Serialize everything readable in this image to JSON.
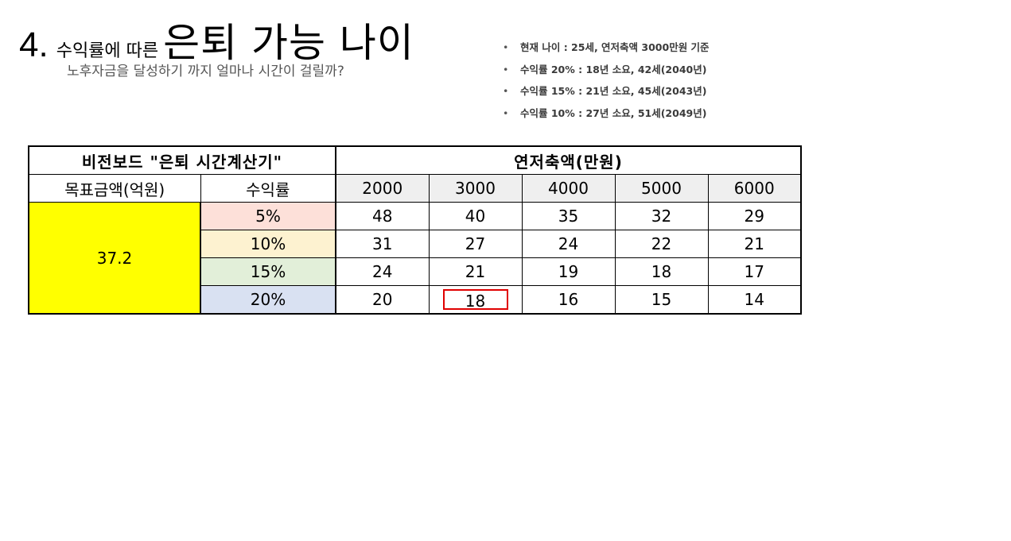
{
  "heading": {
    "number": "4.",
    "prefix": "수익률에 따른",
    "main": "은퇴 가능 나이",
    "subtitle": "노후자금을 달성하기 까지 얼마나 시간이 걸릴까?"
  },
  "bullets": [
    "현재 나이 : 25세, 연저축액 3000만원 기준",
    "수익률 20% : 18년 소요, 42세(2040년)",
    "수익률 15% : 21년 소요, 45세(2043년)",
    "수익률 10% : 27년 소요, 51세(2049년)"
  ],
  "table": {
    "title": "비전보드 \"은퇴 시간계산기\"",
    "savings_header": "연저축액(만원)",
    "goal_header": "목표금액(억원)",
    "rate_header": "수익률",
    "goal_value": "37.2",
    "savings": [
      "2000",
      "3000",
      "4000",
      "5000",
      "6000"
    ],
    "rows": [
      {
        "rate": "5%",
        "values": [
          "48",
          "40",
          "35",
          "32",
          "29"
        ]
      },
      {
        "rate": "10%",
        "values": [
          "31",
          "27",
          "24",
          "22",
          "21"
        ]
      },
      {
        "rate": "15%",
        "values": [
          "24",
          "21",
          "19",
          "18",
          "17"
        ]
      },
      {
        "rate": "20%",
        "values": [
          "20",
          "18",
          "16",
          "15",
          "14"
        ]
      }
    ],
    "highlight": {
      "row": "20%",
      "savings": "3000",
      "color": "#e00000"
    }
  }
}
